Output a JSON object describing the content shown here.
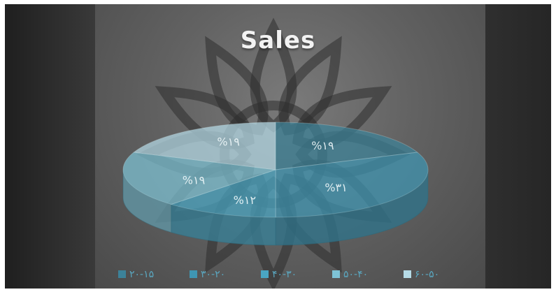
{
  "chart_data": {
    "type": "pie",
    "title": "Sales",
    "categories": [
      "۲۰-۱۵",
      "۳۰-۲۰",
      "۴۰-۳۰",
      "۵۰-۴۰",
      "۶۰-۵۰"
    ],
    "values": [
      19,
      31,
      12,
      19,
      19
    ],
    "data_labels": [
      "%۱۹",
      "%۳۱",
      "%۱۲",
      "%۱۹",
      "%۱۹"
    ],
    "colors": [
      "#3c8299",
      "#3f96b3",
      "#4aa6c3",
      "#7ec3d6",
      "#b6dbe7"
    ],
    "legend": "bottom",
    "style": "3d-exploded-none"
  }
}
